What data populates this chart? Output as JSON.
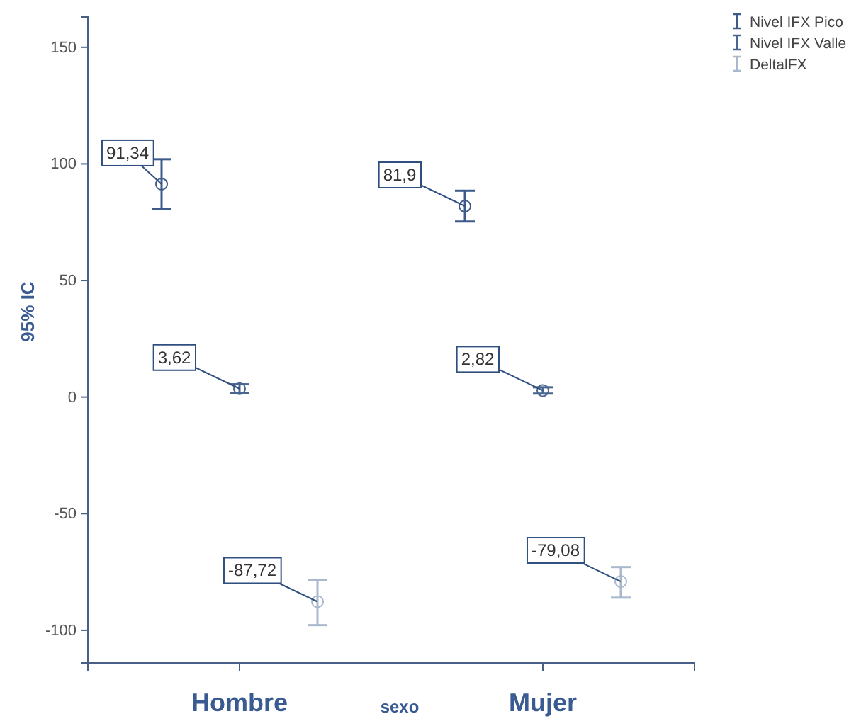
{
  "chart_data": {
    "type": "scatter",
    "categories": [
      "Hombre",
      "Mujer"
    ],
    "xlabel": "sexo",
    "ylabel": "95% IC",
    "ylim": [
      -114,
      163
    ],
    "yticks": [
      -100,
      -50,
      0,
      50,
      100,
      150
    ],
    "marker": "circle",
    "legend": "top right",
    "grid": false,
    "series": [
      {
        "name": "Nivel IFX Pico",
        "color": "#3d5a8a",
        "values": [
          91.34,
          81.9
        ],
        "errors": [
          [
            80.8,
            102
          ],
          [
            75.3,
            88.5
          ]
        ],
        "value_labels": [
          "91,34",
          "81,9"
        ]
      },
      {
        "name": "Nivel IFX Valle",
        "color": "#4a6690",
        "values": [
          3.62,
          2.82
        ],
        "errors": [
          [
            1.8,
            5.5
          ],
          [
            1.5,
            4.2
          ]
        ],
        "value_labels": [
          "3,62",
          "2,82"
        ]
      },
      {
        "name": "DeltalFX",
        "color": "#a9b8cc",
        "values": [
          -87.72,
          -79.08
        ],
        "errors": [
          [
            -97.8,
            -78.3
          ],
          [
            -86,
            -72.9
          ]
        ],
        "value_labels": [
          "-87,72",
          "-79,08"
        ]
      }
    ]
  }
}
